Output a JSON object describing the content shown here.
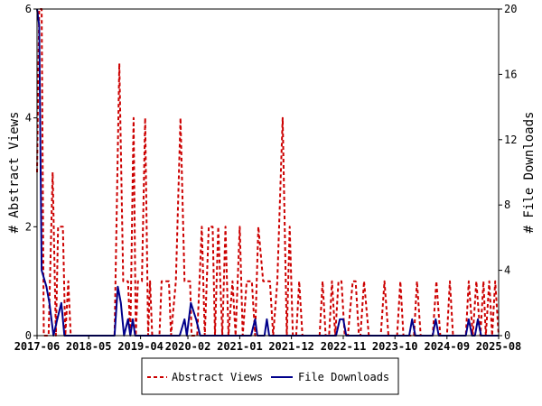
{
  "chart_data": {
    "type": "line",
    "title": "",
    "xlabel": "",
    "ylabel_left": "# Abstract Views",
    "ylabel_right": "# File Downloads",
    "x_tick_labels": [
      "2017-06",
      "2018-05",
      "2019-04",
      "2020-02",
      "2021-01",
      "2021-12",
      "2022-11",
      "2023-10",
      "2024-09",
      "2025-08"
    ],
    "x_range": [
      "2017-06",
      "2025-08"
    ],
    "ylim_left": [
      0,
      6
    ],
    "yticks_left": [
      0,
      2,
      4,
      6
    ],
    "ylim_right": [
      0,
      20
    ],
    "yticks_right": [
      0,
      4,
      8,
      12,
      16,
      20
    ],
    "grid": false,
    "legend_position": "bottom-center",
    "series": [
      {
        "name": "Abstract Views",
        "axis": "left",
        "color": "#cc0000",
        "style": "dashed",
        "points": [
          [
            "2017-06-01",
            3
          ],
          [
            "2017-06-15",
            6
          ],
          [
            "2017-07-01",
            6
          ],
          [
            "2017-07-15",
            0
          ],
          [
            "2017-08-15",
            0
          ],
          [
            "2017-09-10",
            3
          ],
          [
            "2017-10-01",
            0
          ],
          [
            "2017-10-15",
            2
          ],
          [
            "2017-11-15",
            2
          ],
          [
            "2017-12-01",
            0
          ],
          [
            "2017-12-20",
            1
          ],
          [
            "2018-01-05",
            0
          ],
          [
            "2018-10-15",
            0
          ],
          [
            "2018-11-15",
            5
          ],
          [
            "2018-12-10",
            1
          ],
          [
            "2019-01-10",
            1
          ],
          [
            "2019-01-25",
            0
          ],
          [
            "2019-02-15",
            4
          ],
          [
            "2019-03-01",
            0
          ],
          [
            "2019-03-15",
            1
          ],
          [
            "2019-04-10",
            1
          ],
          [
            "2019-05-01",
            4
          ],
          [
            "2019-05-20",
            0
          ],
          [
            "2019-06-01",
            1
          ],
          [
            "2019-06-15",
            0
          ],
          [
            "2019-08-01",
            0
          ],
          [
            "2019-08-15",
            1
          ],
          [
            "2019-10-01",
            1
          ],
          [
            "2019-10-15",
            0
          ],
          [
            "2019-11-15",
            1
          ],
          [
            "2019-12-15",
            4
          ],
          [
            "2020-01-10",
            1
          ],
          [
            "2020-02-15",
            1
          ],
          [
            "2020-02-25",
            0
          ],
          [
            "2020-04-01",
            0
          ],
          [
            "2020-05-01",
            2
          ],
          [
            "2020-05-20",
            0
          ],
          [
            "2020-06-15",
            2
          ],
          [
            "2020-07-10",
            2
          ],
          [
            "2020-07-25",
            0
          ],
          [
            "2020-08-15",
            2
          ],
          [
            "2020-09-10",
            0
          ],
          [
            "2020-10-01",
            2
          ],
          [
            "2020-10-20",
            0
          ],
          [
            "2020-11-15",
            1
          ],
          [
            "2020-12-05",
            0
          ],
          [
            "2021-01-01",
            2
          ],
          [
            "2021-01-20",
            0
          ],
          [
            "2021-02-15",
            1
          ],
          [
            "2021-03-20",
            1
          ],
          [
            "2021-04-10",
            0
          ],
          [
            "2021-05-01",
            2
          ],
          [
            "2021-06-01",
            1
          ],
          [
            "2021-07-15",
            1
          ],
          [
            "2021-08-05",
            0
          ],
          [
            "2021-09-01",
            1
          ],
          [
            "2021-10-05",
            4
          ],
          [
            "2021-11-01",
            0
          ],
          [
            "2021-11-20",
            2
          ],
          [
            "2021-12-10",
            0
          ],
          [
            "2022-01-01",
            0
          ],
          [
            "2022-01-20",
            1
          ],
          [
            "2022-02-10",
            0
          ],
          [
            "2022-06-01",
            0
          ],
          [
            "2022-06-20",
            1
          ],
          [
            "2022-07-10",
            0
          ],
          [
            "2022-08-01",
            0
          ],
          [
            "2022-08-20",
            1
          ],
          [
            "2022-09-10",
            0
          ],
          [
            "2022-10-01",
            1
          ],
          [
            "2022-10-20",
            1
          ],
          [
            "2022-11-10",
            0
          ],
          [
            "2022-12-01",
            0
          ],
          [
            "2023-01-01",
            1
          ],
          [
            "2023-01-20",
            1
          ],
          [
            "2023-02-10",
            0
          ],
          [
            "2023-02-20",
            0
          ],
          [
            "2023-03-15",
            1
          ],
          [
            "2023-04-15",
            0
          ],
          [
            "2023-07-01",
            0
          ],
          [
            "2023-07-25",
            1
          ],
          [
            "2023-08-20",
            0
          ],
          [
            "2023-10-15",
            0
          ],
          [
            "2023-11-05",
            1
          ],
          [
            "2023-11-25",
            0
          ],
          [
            "2024-02-01",
            0
          ],
          [
            "2024-02-20",
            1
          ],
          [
            "2024-03-15",
            0
          ],
          [
            "2024-06-01",
            0
          ],
          [
            "2024-06-25",
            1
          ],
          [
            "2024-07-20",
            0
          ],
          [
            "2024-09-01",
            0
          ],
          [
            "2024-09-20",
            1
          ],
          [
            "2024-10-10",
            0
          ],
          [
            "2025-01-01",
            0
          ],
          [
            "2025-01-20",
            1
          ],
          [
            "2025-02-15",
            0
          ],
          [
            "2025-03-10",
            1
          ],
          [
            "2025-04-05",
            0
          ],
          [
            "2025-04-25",
            1
          ],
          [
            "2025-05-10",
            0
          ],
          [
            "2025-06-01",
            1
          ],
          [
            "2025-06-20",
            0
          ],
          [
            "2025-07-10",
            1
          ],
          [
            "2025-08-01",
            0
          ]
        ]
      },
      {
        "name": "File Downloads",
        "axis": "right",
        "color": "#00008b",
        "style": "solid",
        "points": [
          [
            "2017-06-01",
            20
          ],
          [
            "2017-06-15",
            19
          ],
          [
            "2017-07-01",
            4
          ],
          [
            "2017-08-01",
            3
          ],
          [
            "2017-08-20",
            2
          ],
          [
            "2017-09-15",
            0
          ],
          [
            "2017-10-10",
            1
          ],
          [
            "2017-11-05",
            2
          ],
          [
            "2017-11-25",
            0
          ],
          [
            "2018-10-15",
            0
          ],
          [
            "2018-11-05",
            3
          ],
          [
            "2018-11-25",
            2
          ],
          [
            "2018-12-15",
            0
          ],
          [
            "2019-01-10",
            1
          ],
          [
            "2019-01-25",
            0
          ],
          [
            "2019-02-10",
            1
          ],
          [
            "2019-02-25",
            0
          ],
          [
            "2019-12-10",
            0
          ],
          [
            "2020-01-10",
            1
          ],
          [
            "2020-01-25",
            0
          ],
          [
            "2020-02-20",
            2
          ],
          [
            "2020-03-25",
            1
          ],
          [
            "2020-04-20",
            0
          ],
          [
            "2021-03-15",
            0
          ],
          [
            "2021-04-10",
            1
          ],
          [
            "2021-04-25",
            0
          ],
          [
            "2021-06-10",
            0
          ],
          [
            "2021-06-25",
            1
          ],
          [
            "2021-07-10",
            0
          ],
          [
            "2022-09-15",
            0
          ],
          [
            "2022-10-10",
            1
          ],
          [
            "2022-11-01",
            1
          ],
          [
            "2022-11-20",
            0
          ],
          [
            "2024-01-01",
            0
          ],
          [
            "2024-01-20",
            1
          ],
          [
            "2024-02-10",
            0
          ],
          [
            "2024-06-01",
            0
          ],
          [
            "2024-06-20",
            1
          ],
          [
            "2024-07-10",
            0
          ],
          [
            "2025-01-01",
            0
          ],
          [
            "2025-01-20",
            1
          ],
          [
            "2025-02-10",
            0
          ],
          [
            "2025-03-01",
            0
          ],
          [
            "2025-03-20",
            1
          ],
          [
            "2025-04-10",
            0
          ],
          [
            "2025-08-01",
            0
          ]
        ]
      }
    ]
  }
}
